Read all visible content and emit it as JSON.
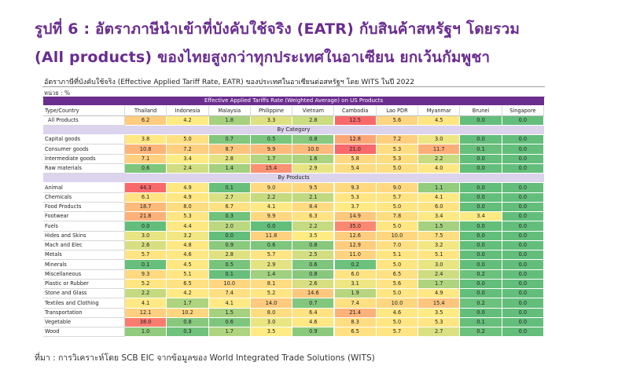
{
  "header": {
    "title_line1": "รูปที่ 6 : อัตราภาษีนำเข้าที่บังคับใช้จริง (EATR) กับสินค้าสหรัฐฯ โดยรวม",
    "title_line2": "(All products) ของไทยสูงกว่าทุกประเทศในอาเซียน ยกเว้นกัมพูชา"
  },
  "chart": {
    "subtitle": "อัตราภาษีที่บังคับใช้จริง (Effective Applied Tariff Rate, EATR) ของประเทศในอาเซียนต่อสหรัฐฯ โดย WITS ในปี 2022",
    "unit": "หน่วย : %"
  },
  "footer": {
    "source": "ที่มา : การวิเคราะห์โดย SCB EIC จากข้อมูลของ World Integrated Trade Solutions (WITS)"
  },
  "colors": {
    "banner": "#6b2d8e",
    "section": "#dcd3ec",
    "title": "#6a2c91",
    "scale_low": "#63be7b",
    "scale_mid": "#ffeb84",
    "scale_high": "#f8696b"
  },
  "chart_data": {
    "type": "heatmap",
    "title": "Effective Applied Tariffs Rate (Weighted Average) on US Products",
    "row_header": "Type/Country",
    "columns": [
      "Thailand",
      "Indonesia",
      "Malaysia",
      "Philippine",
      "Vietnam",
      "Cambodia",
      "Lao PDR",
      "Myanmar",
      "Brunei",
      "Singapore"
    ],
    "groups": [
      {
        "section": "",
        "rows": [
          {
            "label": "All Products",
            "values": [
              6.2,
              4.2,
              1.8,
              3.3,
              2.8,
              12.5,
              5.6,
              4.5,
              0.0,
              0.0
            ]
          }
        ]
      },
      {
        "section": "By Category",
        "rows": [
          {
            "label": "Capital goods",
            "values": [
              3.8,
              5.0,
              0.7,
              0.5,
              0.8,
              12.8,
              7.2,
              3.0,
              0.0,
              0.0
            ]
          },
          {
            "label": "Consumer goods",
            "values": [
              10.8,
              7.2,
              8.7,
              9.9,
              10.0,
              21.0,
              5.3,
              11.7,
              0.1,
              0.0
            ]
          },
          {
            "label": "Intermediate goods",
            "values": [
              7.1,
              3.4,
              2.8,
              1.7,
              1.6,
              5.8,
              5.3,
              2.2,
              0.0,
              0.0
            ]
          },
          {
            "label": "Raw materials",
            "values": [
              0.6,
              2.4,
              1.4,
              15.4,
              2.9,
              5.4,
              5.0,
              4.0,
              0.0,
              0.0
            ]
          }
        ]
      },
      {
        "section": "By Products",
        "rows": [
          {
            "label": "Animal",
            "values": [
              44.3,
              4.9,
              0.1,
              9.0,
              9.5,
              9.3,
              9.0,
              1.1,
              0.0,
              0.0
            ]
          },
          {
            "label": "Chemicals",
            "values": [
              6.1,
              4.9,
              2.7,
              2.2,
              2.1,
              5.3,
              5.7,
              4.1,
              0.0,
              0.0
            ]
          },
          {
            "label": "Food Products",
            "values": [
              18.7,
              8.0,
              6.7,
              4.1,
              8.4,
              3.7,
              5.0,
              6.0,
              0.0,
              0.0
            ]
          },
          {
            "label": "Footwear",
            "values": [
              21.8,
              5.3,
              0.3,
              9.9,
              6.3,
              14.9,
              7.8,
              3.4,
              3.4,
              0.0
            ]
          },
          {
            "label": "Fuels",
            "values": [
              0.0,
              4.4,
              2.0,
              0.0,
              2.2,
              35.0,
              5.0,
              1.5,
              0.0,
              0.0
            ]
          },
          {
            "label": "Hides and Skins",
            "values": [
              3.0,
              3.2,
              0.0,
              11.8,
              3.5,
              12.6,
              10.0,
              7.5,
              0.0,
              0.0
            ]
          },
          {
            "label": "Mach and Elec",
            "values": [
              2.6,
              4.8,
              0.9,
              0.6,
              0.8,
              12.9,
              7.0,
              3.2,
              0.0,
              0.0
            ]
          },
          {
            "label": "Metals",
            "values": [
              5.7,
              4.6,
              2.8,
              5.7,
              2.5,
              11.0,
              5.1,
              5.1,
              0.0,
              0.0
            ]
          },
          {
            "label": "Minerals",
            "values": [
              0.1,
              4.5,
              0.5,
              2.9,
              0.6,
              0.2,
              5.0,
              3.0,
              0.0,
              0.0
            ]
          },
          {
            "label": "Miscellaneous",
            "values": [
              9.3,
              5.1,
              0.1,
              1.4,
              0.8,
              6.0,
              6.5,
              2.4,
              0.2,
              0.0
            ]
          },
          {
            "label": "Plastic or Rubber",
            "values": [
              5.2,
              6.5,
              10.0,
              8.1,
              2.6,
              3.1,
              5.6,
              1.7,
              0.0,
              0.0
            ]
          },
          {
            "label": "Stone and Glass",
            "values": [
              2.2,
              4.2,
              7.4,
              5.2,
              14.6,
              1.9,
              5.0,
              4.9,
              0.0,
              0.0
            ]
          },
          {
            "label": "Textiles and Clothing",
            "values": [
              4.1,
              1.7,
              4.1,
              14.0,
              0.7,
              7.4,
              10.0,
              15.4,
              0.2,
              0.0
            ]
          },
          {
            "label": "Transportation",
            "values": [
              12.1,
              10.2,
              1.5,
              8.0,
              6.4,
              21.4,
              4.6,
              3.5,
              0.0,
              0.0
            ]
          },
          {
            "label": "Vegetable",
            "values": [
              38.0,
              0.8,
              0.6,
              3.0,
              4.6,
              8.3,
              5.0,
              5.3,
              0.1,
              0.0
            ]
          },
          {
            "label": "Wood",
            "values": [
              1.0,
              0.3,
              1.7,
              3.5,
              0.9,
              6.5,
              5.7,
              2.7,
              0.2,
              0.0
            ]
          }
        ]
      }
    ]
  }
}
